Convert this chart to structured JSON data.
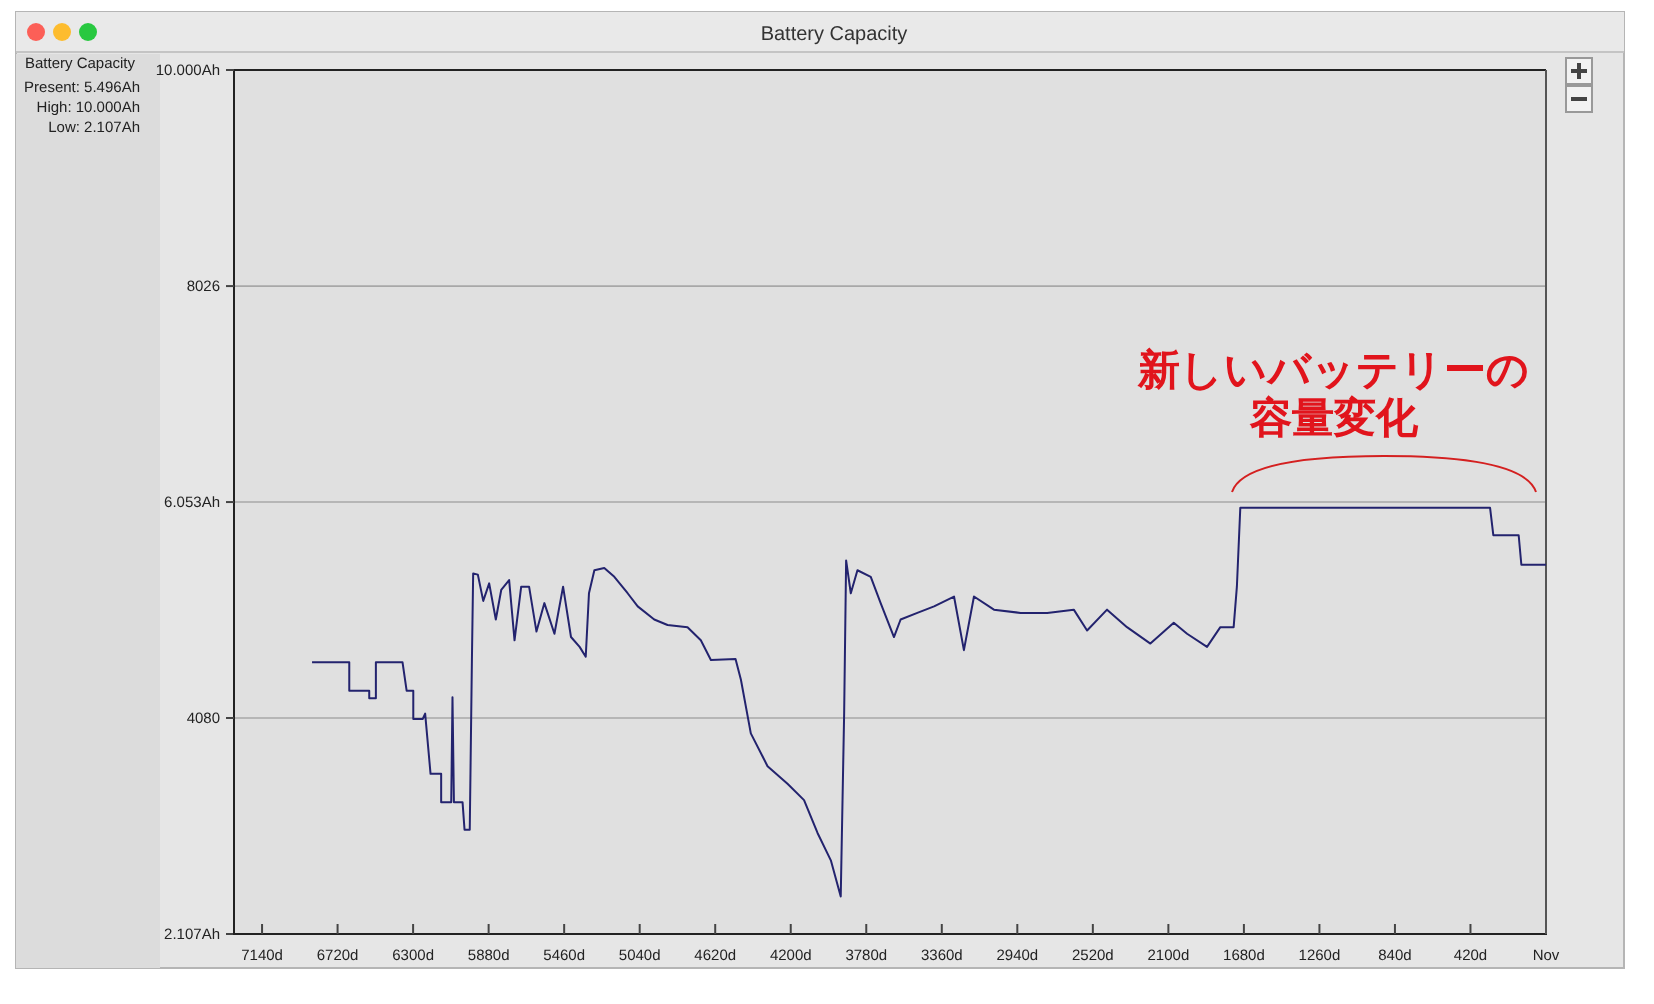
{
  "chart_data": {
    "type": "line",
    "title": "Battery Capacity",
    "annotations": [
      "Battery Capacity",
      "Present: 5.496Ah",
      "High: 10.000Ah",
      "Low: 2.107Ah",
      "新しいバッテリーの",
      "容量変化"
    ],
    "xlim": [
      7296,
      0
    ],
    "xticks": [
      {
        "value": 7140,
        "label": "7140d"
      },
      {
        "value": 6720,
        "label": "6720d"
      },
      {
        "value": 6300,
        "label": "6300d"
      },
      {
        "value": 5880,
        "label": "5880d"
      },
      {
        "value": 5460,
        "label": "5460d"
      },
      {
        "value": 5040,
        "label": "5040d"
      },
      {
        "value": 4620,
        "label": "4620d"
      },
      {
        "value": 4200,
        "label": "4200d"
      },
      {
        "value": 3780,
        "label": "3780d"
      },
      {
        "value": 3360,
        "label": "3360d"
      },
      {
        "value": 2940,
        "label": "2940d"
      },
      {
        "value": 2520,
        "label": "2520d"
      },
      {
        "value": 2100,
        "label": "2100d"
      },
      {
        "value": 1680,
        "label": "1680d"
      },
      {
        "value": 1260,
        "label": "1260d"
      },
      {
        "value": 840,
        "label": "840d"
      },
      {
        "value": 420,
        "label": "420d"
      },
      {
        "value": 0,
        "label": "Nov"
      }
    ],
    "ylim": [
      2107,
      10000
    ],
    "yticks": [
      {
        "value": 2107,
        "label": "2.107Ah"
      },
      4080,
      {
        "value": 6053,
        "label": "6.053Ah"
      },
      8026,
      {
        "value": 10000,
        "label": "10.000Ah"
      }
    ],
    "grid": "y",
    "marker": "none",
    "line_style": "solid",
    "series": [
      {
        "color": "#23236e",
        "x": [
          6862,
          6655,
          6655,
          6544,
          6544,
          6507,
          6507,
          6359,
          6336,
          6299,
          6299,
          6247,
          6233,
          6203,
          6144,
          6144,
          6088,
          6081,
          6073,
          6025,
          6014,
          5985,
          5973,
          5966,
          5940,
          5910,
          5877,
          5840,
          5810,
          5766,
          5736,
          5699,
          5655,
          5614,
          5570,
          5514,
          5466,
          5422,
          5374,
          5340,
          5322,
          5292,
          5237,
          5181,
          5107,
          5051,
          4959,
          4885,
          4774,
          4700,
          4644,
          4507,
          4477,
          4422,
          4329,
          4218,
          4126,
          4051,
          3977,
          3922,
          3903,
          3892,
          3866,
          3829,
          3755,
          3700,
          3626,
          3589,
          3496,
          3403,
          3292,
          3237,
          3181,
          3070,
          2922,
          2774,
          2626,
          2552,
          2441,
          2330,
          2200,
          2070,
          1996,
          1885,
          1811,
          1737,
          1719,
          1700,
          311,
          293,
          152,
          137,
          0
        ],
        "values": [
          4590,
          4590,
          4330,
          4330,
          4260,
          4260,
          4590,
          4590,
          4330,
          4330,
          4070,
          4070,
          4120,
          3570,
          3570,
          3310,
          3310,
          4270,
          3310,
          3310,
          3060,
          3060,
          4610,
          5400,
          5390,
          5150,
          5310,
          4980,
          5250,
          5340,
          4790,
          5280,
          5280,
          4870,
          5130,
          4850,
          5280,
          4820,
          4730,
          4640,
          5220,
          5430,
          5450,
          5370,
          5220,
          5100,
          4980,
          4930,
          4910,
          4790,
          4610,
          4620,
          4430,
          3940,
          3640,
          3480,
          3330,
          3030,
          2780,
          2450,
          4120,
          5520,
          5220,
          5430,
          5370,
          5130,
          4820,
          4980,
          5040,
          5100,
          5190,
          4700,
          5190,
          5070,
          5040,
          5040,
          5070,
          4880,
          5070,
          4910,
          4760,
          4950,
          4850,
          4730,
          4910,
          4910,
          5280,
          6000,
          6000,
          5750,
          5750,
          5480,
          5480
        ]
      }
    ]
  }
}
